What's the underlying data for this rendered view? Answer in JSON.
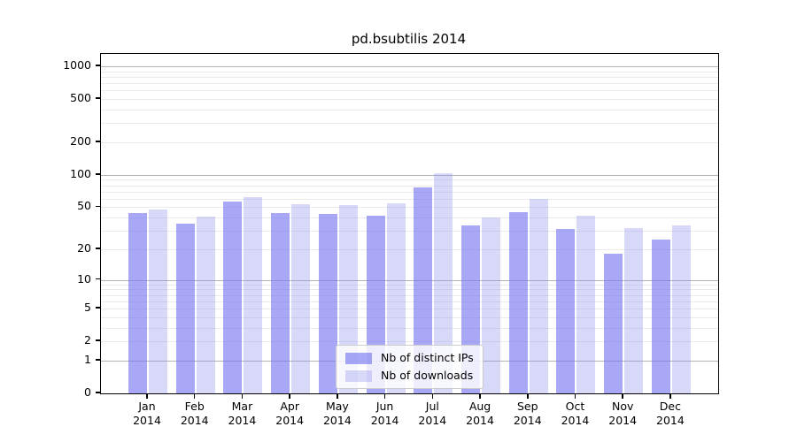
{
  "chart_data": {
    "type": "bar",
    "title": "pd.bsubtilis 2014",
    "x_tick_months": [
      "Jan",
      "Feb",
      "Mar",
      "Apr",
      "May",
      "Jun",
      "Jul",
      "Aug",
      "Sep",
      "Oct",
      "Nov",
      "Dec"
    ],
    "x_tick_year": "2014",
    "series": [
      {
        "name": "Nb of distinct IPs",
        "color": "#a8a8f6",
        "color_rgba": "rgba(115,115,240,0.62)",
        "values": [
          44,
          35,
          57,
          44,
          43,
          42,
          76,
          34,
          45,
          31,
          18,
          25
        ]
      },
      {
        "name": "Nb of downloads",
        "color": "#d8d8f9",
        "color_rgba": "rgba(144,144,238,0.35)",
        "values": [
          48,
          41,
          62,
          53,
          52,
          54,
          104,
          40,
          60,
          42,
          32,
          34
        ]
      }
    ],
    "y_ticks": [
      1000,
      500,
      200,
      100,
      50,
      20,
      10,
      5,
      2,
      1,
      0
    ],
    "y_scale": "log10(1+x)",
    "ylim": [
      0,
      1300
    ],
    "grid": {
      "major_values": [
        1,
        10,
        100,
        1000
      ],
      "minor_base_values": [
        2,
        3,
        4,
        5,
        6,
        7,
        8,
        9
      ],
      "major_color": "#b3b3b3",
      "minor_color": "#eaeaea"
    },
    "legend": {
      "position": "lower center"
    },
    "axis_color": "#000000"
  }
}
